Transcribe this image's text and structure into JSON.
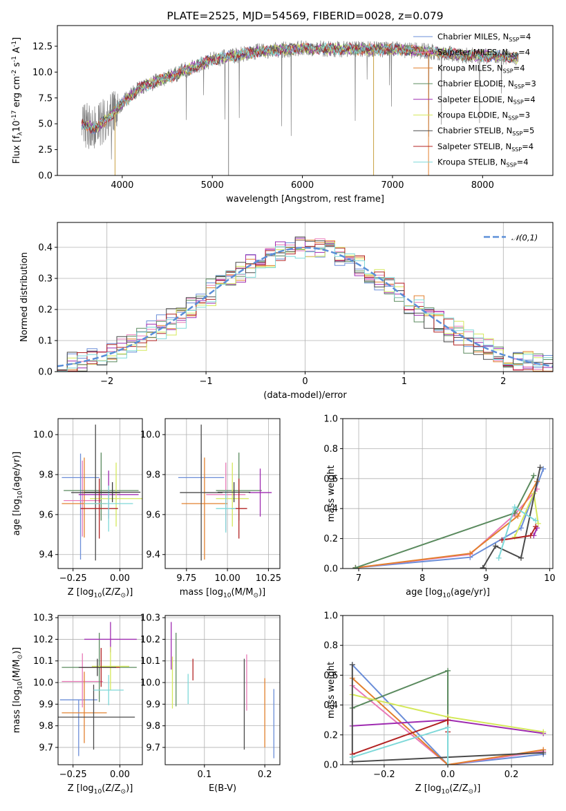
{
  "chart_data": [
    {
      "id": "spectrum",
      "type": "line",
      "title": "PLATE=2525, MJD=54569, FIBERID=0028, z=0.079",
      "xlabel": "wavelength [Angstrom, rest frame]",
      "ylabel": "Flux [f$_\\lambda$10$^{-17}$ erg cm$^{-2}$ s$^{-1}$ A$^{-1}$]",
      "xlim": [
        3280,
        8780
      ],
      "ylim": [
        0,
        14.5
      ],
      "xticks": [
        4000,
        5000,
        6000,
        7000,
        8000
      ],
      "yticks": [
        0.0,
        2.5,
        5.0,
        7.5,
        10.0,
        12.5
      ],
      "xtick_labels": [
        "4000",
        "5000",
        "6000",
        "7000",
        "8000"
      ],
      "ytick_labels": [
        "0.0",
        "2.5",
        "5.0",
        "7.5",
        "10.0",
        "12.5"
      ],
      "legend_position": "top-right",
      "data_range": [
        3550,
        8400
      ],
      "continuum": [
        [
          3550,
          5.0
        ],
        [
          3700,
          4.5
        ],
        [
          3900,
          6.0
        ],
        [
          4000,
          7.0
        ],
        [
          4200,
          8.5
        ],
        [
          4500,
          9.5
        ],
        [
          4800,
          10.5
        ],
        [
          5000,
          11.2
        ],
        [
          5500,
          12.0
        ],
        [
          6000,
          12.3
        ],
        [
          6500,
          12.2
        ],
        [
          7000,
          12.2
        ],
        [
          7400,
          12.0
        ],
        [
          7800,
          11.6
        ],
        [
          8000,
          11.6
        ],
        [
          8400,
          11.4
        ]
      ],
      "series": [
        {
          "name": "Chabrier MILES, N$_{SSP}$=4",
          "color": "#6a8dd8"
        },
        {
          "name": "Salpeter MILES, N$_{SSP}$=4",
          "color": "#e879b7"
        },
        {
          "name": "Kroupa MILES, N$_{SSP}$=4",
          "color": "#e2802e"
        },
        {
          "name": "Chabrier ELODIE, N$_{SSP}$=3",
          "color": "#5a8a5e"
        },
        {
          "name": "Salpeter ELODIE, N$_{SSP}$=4",
          "color": "#9e2ab0"
        },
        {
          "name": "Kroupa ELODIE, N$_{SSP}$=3",
          "color": "#d4e85a"
        },
        {
          "name": "Chabrier STELIB, N$_{SSP}$=5",
          "color": "#4a4a4a"
        },
        {
          "name": "Salpeter STELIB, N$_{SSP}$=4",
          "color": "#b22222"
        },
        {
          "name": "Kroupa STELIB, N$_{SSP}$=4",
          "color": "#7dd8d8"
        }
      ]
    },
    {
      "id": "residuals",
      "type": "histogram",
      "xlabel": "(data-model)/error",
      "ylabel": "Normed distribution",
      "xlim": [
        -2.5,
        2.5
      ],
      "ylim": [
        0,
        0.48
      ],
      "xticks": [
        -2,
        -1,
        0,
        1,
        2
      ],
      "yticks": [
        0.0,
        0.1,
        0.2,
        0.3,
        0.4
      ],
      "xtick_labels": [
        "−2",
        "−1",
        "0",
        "1",
        "2"
      ],
      "ytick_labels": [
        "0.0",
        "0.1",
        "0.2",
        "0.3",
        "0.4"
      ],
      "legend": "$\\mathcal{N}(0,1)$",
      "legend_position": "top-right",
      "bin_width": 0.1,
      "bin_start": -2.5,
      "gaussian_color": "#5a8ed8"
    },
    {
      "id": "age_vs_Z",
      "type": "errorbar",
      "xlabel": "Z [log$_{10}$(Z/Z$_\\odot$)]",
      "ylabel": "age  [log$_{10}$(age/yr)]",
      "xlim": [
        -0.33,
        0.12
      ],
      "ylim": [
        9.33,
        10.08
      ],
      "xticks": [
        -0.25,
        0.0
      ],
      "yticks": [
        9.4,
        9.6,
        9.8,
        10.0
      ],
      "xtick_labels": [
        "−0.25",
        "0.00"
      ],
      "ytick_labels": [
        "9.4",
        "9.6",
        "9.8",
        "10.0"
      ],
      "points": [
        {
          "x": -0.21,
          "xerr": 0.1,
          "y": 9.785,
          "yerr": [
            0.41,
            0.12
          ],
          "color": "#6a8dd8"
        },
        {
          "x": -0.2,
          "xerr": 0.1,
          "y": 9.67,
          "yerr": [
            0.18,
            0.2
          ],
          "color": "#e879b7"
        },
        {
          "x": -0.19,
          "xerr": 0.12,
          "y": 9.655,
          "yerr": [
            0.17,
            0.23
          ],
          "color": "#e2802e"
        },
        {
          "x": -0.1,
          "xerr": 0.2,
          "y": 9.72,
          "yerr": [
            0.15,
            0.19
          ],
          "color": "#5a8a5e"
        },
        {
          "x": -0.06,
          "xerr": 0.16,
          "y": 9.7,
          "yerr": [
            0.12,
            0.12
          ],
          "color": "#9e2ab0"
        },
        {
          "x": -0.02,
          "xerr": 0.14,
          "y": 9.68,
          "yerr": [
            0.14,
            0.18
          ],
          "color": "#d4e85a"
        },
        {
          "x": -0.13,
          "xerr": 0.13,
          "y": 9.71,
          "yerr": [
            0.34,
            0.34
          ],
          "color": "#4a4a4a"
        },
        {
          "x": -0.11,
          "xerr": 0.1,
          "y": 9.63,
          "yerr": [
            0.15,
            0.15
          ],
          "color": "#b22222"
        },
        {
          "x": -0.06,
          "xerr": 0.13,
          "y": 9.655,
          "yerr": [
            0.14,
            0.09
          ],
          "color": "#7dd8d8"
        },
        {
          "x": -0.04,
          "xerr": 0.15,
          "y": 9.712,
          "yerr": [
            0.05,
            0.05
          ],
          "color": "#3a3a3a"
        }
      ]
    },
    {
      "id": "age_vs_mass",
      "type": "errorbar",
      "xlabel": "mass [log$_{10}$(M/M$_\\odot$)]",
      "ylabel": "",
      "xlim": [
        9.62,
        10.32
      ],
      "ylim": [
        9.33,
        10.08
      ],
      "xticks": [
        9.75,
        10.0,
        10.25
      ],
      "yticks": [
        9.4,
        9.6,
        9.8,
        10.0
      ],
      "xtick_labels": [
        "9.75",
        "10.00",
        "10.25"
      ],
      "ytick_labels": [
        "9.4",
        "9.6",
        "9.8",
        "10.0"
      ],
      "points": [
        {
          "x": 9.84,
          "xerr": 0.14,
          "y": 9.785,
          "yerr": [
            0.12,
            0.12
          ],
          "color": "#6a8dd8"
        },
        {
          "x": 9.99,
          "xerr": 0.12,
          "y": 9.7,
          "yerr": [
            0.18,
            0.16
          ],
          "color": "#e879b7"
        },
        {
          "x": 9.86,
          "xerr": 0.14,
          "y": 9.655,
          "yerr": [
            0.28,
            0.23
          ],
          "color": "#e2802e"
        },
        {
          "x": 10.07,
          "xerr": 0.14,
          "y": 9.72,
          "yerr": [
            0.15,
            0.19
          ],
          "color": "#5a8a5e"
        },
        {
          "x": 10.2,
          "xerr": 0.07,
          "y": 9.71,
          "yerr": [
            0.12,
            0.12
          ],
          "color": "#9e2ab0"
        },
        {
          "x": 10.03,
          "xerr": 0.1,
          "y": 9.68,
          "yerr": [
            0.14,
            0.18
          ],
          "color": "#d4e85a"
        },
        {
          "x": 9.84,
          "xerr": 0.13,
          "y": 9.71,
          "yerr": [
            0.34,
            0.34
          ],
          "color": "#4a4a4a"
        },
        {
          "x": 10.07,
          "xerr": 0.05,
          "y": 9.63,
          "yerr": [
            0.15,
            0.15
          ],
          "color": "#b22222"
        },
        {
          "x": 9.99,
          "xerr": 0.06,
          "y": 9.63,
          "yerr": [
            0.12,
            0.09
          ],
          "color": "#7dd8d8"
        },
        {
          "x": 10.04,
          "xerr": 0.1,
          "y": 9.712,
          "yerr": [
            0.05,
            0.05
          ],
          "color": "#3a3a3a"
        }
      ]
    },
    {
      "id": "weight_vs_age",
      "type": "line",
      "xlabel": "age  [log$_{10}$(age/yr)]",
      "ylabel": "mass weight",
      "xlim": [
        6.75,
        10.05
      ],
      "ylim": [
        0.0,
        1.0
      ],
      "xticks": [
        7,
        8,
        9,
        10
      ],
      "yticks": [
        0.0,
        0.2,
        0.4,
        0.6,
        0.8,
        1.0
      ],
      "xtick_labels": [
        "7",
        "8",
        "9",
        "10"
      ],
      "ytick_labels": [
        "0.0",
        "0.2",
        "0.4",
        "0.6",
        "0.8",
        "1.0"
      ],
      "series": [
        {
          "color": "#6a8dd8",
          "x": [
            6.95,
            8.75,
            9.55,
            9.9
          ],
          "y": [
            0.005,
            0.075,
            0.27,
            0.665
          ]
        },
        {
          "color": "#e879b7",
          "x": [
            6.95,
            8.75,
            9.45,
            9.8
          ],
          "y": [
            0.005,
            0.095,
            0.36,
            0.53
          ]
        },
        {
          "color": "#e2802e",
          "x": [
            6.95,
            8.75,
            9.5,
            9.8
          ],
          "y": [
            0.005,
            0.1,
            0.35,
            0.58
          ]
        },
        {
          "color": "#5a8a5e",
          "x": [
            6.95,
            9.45,
            9.75
          ],
          "y": [
            0.005,
            0.37,
            0.62
          ]
        },
        {
          "color": "#9e2ab0",
          "x": [
            9.75,
            9.8
          ],
          "y": [
            0.22,
            0.27
          ]
        },
        {
          "color": "#d4e85a",
          "x": [
            9.45,
            9.75,
            9.82
          ],
          "y": [
            0.21,
            0.5,
            0.3
          ]
        },
        {
          "color": "#4a4a4a",
          "x": [
            8.95,
            9.15,
            9.55,
            9.85
          ],
          "y": [
            0.005,
            0.15,
            0.07,
            0.675
          ]
        },
        {
          "color": "#b22222",
          "x": [
            9.25,
            9.7,
            9.78
          ],
          "y": [
            0.19,
            0.22,
            0.28
          ]
        },
        {
          "color": "#7dd8d8",
          "x": [
            9.2,
            9.45,
            9.78
          ],
          "y": [
            0.07,
            0.41,
            0.32
          ]
        }
      ]
    },
    {
      "id": "mass_vs_Z",
      "type": "errorbar",
      "xlabel": "Z [log$_{10}$(Z/Z$_\\odot$)]",
      "ylabel": "mass [log$_{10}$(M/M$_\\odot$)]",
      "xlim": [
        -0.33,
        0.12
      ],
      "ylim": [
        9.62,
        10.31
      ],
      "xticks": [
        -0.25,
        0.0
      ],
      "yticks": [
        9.7,
        9.8,
        9.9,
        10.0,
        10.1,
        10.2,
        10.3
      ],
      "xtick_labels": [
        "−0.25",
        "0.00"
      ],
      "ytick_labels": [
        "9.7",
        "9.8",
        "9.9",
        "10.0",
        "10.1",
        "10.2",
        "10.3"
      ],
      "points": [
        {
          "x": -0.22,
          "xerr": 0.1,
          "y": 9.92,
          "yerr": [
            0.26,
            0.0
          ],
          "color": "#6a8dd8"
        },
        {
          "x": -0.2,
          "xerr": 0.11,
          "y": 10.005,
          "yerr": [
            0.12,
            0.13
          ],
          "color": "#e879b7"
        },
        {
          "x": -0.19,
          "xerr": 0.12,
          "y": 9.86,
          "yerr": [
            0.14,
            0.19
          ],
          "color": "#e2802e"
        },
        {
          "x": -0.11,
          "xerr": 0.2,
          "y": 10.07,
          "yerr": [
            0.16,
            0.16
          ],
          "color": "#5a8a5e"
        },
        {
          "x": -0.05,
          "xerr": 0.14,
          "y": 10.2,
          "yerr": [
            0.06,
            0.08
          ],
          "color": "#9e2ab0"
        },
        {
          "x": -0.05,
          "xerr": 0.1,
          "y": 10.075,
          "yerr": [
            0.11,
            0.09
          ],
          "color": "#d4e85a"
        },
        {
          "x": -0.14,
          "xerr": 0.22,
          "y": 9.84,
          "yerr": [
            0.15,
            0.15
          ],
          "color": "#4a4a4a"
        },
        {
          "x": -0.1,
          "xerr": 0.1,
          "y": 10.07,
          "yerr": [
            0.09,
            0.09
          ],
          "color": "#b22222"
        },
        {
          "x": -0.06,
          "xerr": 0.08,
          "y": 9.965,
          "yerr": [
            0.07,
            0.07
          ],
          "color": "#7dd8d8"
        },
        {
          "x": -0.12,
          "xerr": 0.1,
          "y": 10.07,
          "yerr": [
            0.04,
            0.04
          ],
          "color": "#3a3a3a"
        }
      ]
    },
    {
      "id": "mass_vs_ebv",
      "type": "errorbar",
      "xlabel": "E(B-V)",
      "ylabel": "",
      "xlim": [
        0.035,
        0.225
      ],
      "ylim": [
        9.62,
        10.31
      ],
      "xticks": [
        0.1,
        0.2
      ],
      "yticks": [
        9.7,
        9.8,
        9.9,
        10.0,
        10.1,
        10.2,
        10.3
      ],
      "xtick_labels": [
        "0.1",
        "0.2"
      ],
      "ytick_labels": [
        "9.7",
        "9.8",
        "9.9",
        "10.0",
        "10.1",
        "10.2",
        "10.3"
      ],
      "points": [
        {
          "x": 0.215,
          "y": 9.81,
          "yerr": [
            0.16,
            0.16
          ],
          "color": "#6a8dd8"
        },
        {
          "x": 0.17,
          "y": 10.0,
          "yerr": [
            0.13,
            0.13
          ],
          "color": "#e879b7"
        },
        {
          "x": 0.2,
          "y": 9.86,
          "yerr": [
            0.16,
            0.16
          ],
          "color": "#e2802e"
        },
        {
          "x": 0.053,
          "y": 10.06,
          "yerr": [
            0.17,
            0.17
          ],
          "color": "#5a8a5e"
        },
        {
          "x": 0.045,
          "y": 10.17,
          "yerr": [
            0.11,
            0.11
          ],
          "color": "#9e2ab0"
        },
        {
          "x": 0.047,
          "y": 10.0,
          "yerr": [
            0.12,
            0.12
          ],
          "color": "#d4e85a"
        },
        {
          "x": 0.166,
          "y": 9.9,
          "yerr": [
            0.21,
            0.21
          ],
          "color": "#4a4a4a"
        },
        {
          "x": 0.081,
          "y": 10.06,
          "yerr": [
            0.05,
            0.05
          ],
          "color": "#b22222"
        },
        {
          "x": 0.073,
          "y": 9.97,
          "yerr": [
            0.07,
            0.07
          ],
          "color": "#7dd8d8"
        }
      ]
    },
    {
      "id": "weight_vs_Z",
      "type": "line",
      "xlabel": "Z [log$_{10}$(Z/Z$_\\odot$)]",
      "ylabel": "mass weight",
      "xlim": [
        -0.33,
        0.33
      ],
      "ylim": [
        0.0,
        1.0
      ],
      "xticks": [
        -0.2,
        0.0,
        0.2
      ],
      "yticks": [
        0.0,
        0.2,
        0.4,
        0.6,
        0.8,
        1.0
      ],
      "xtick_labels": [
        "−0.2",
        "0.0",
        "0.2"
      ],
      "ytick_labels": [
        "0.0",
        "0.2",
        "0.4",
        "0.6",
        "0.8",
        "1.0"
      ],
      "series": [
        {
          "color": "#6a8dd8",
          "x": [
            -0.3,
            0.0,
            0.3
          ],
          "y": [
            0.67,
            0.0,
            0.07
          ]
        },
        {
          "color": "#e879b7",
          "x": [
            -0.3,
            0.0,
            0.3
          ],
          "y": [
            0.53,
            0.0,
            0.09
          ]
        },
        {
          "color": "#e2802e",
          "x": [
            -0.3,
            0.0,
            0.3
          ],
          "y": [
            0.58,
            0.0,
            0.1
          ]
        },
        {
          "color": "#5a8a5e",
          "x": [
            -0.3,
            0.0,
            0.0
          ],
          "y": [
            0.38,
            0.63,
            0.0
          ]
        },
        {
          "color": "#9e2ab0",
          "x": [
            -0.3,
            0.0,
            0.3
          ],
          "y": [
            0.26,
            0.3,
            0.21
          ]
        },
        {
          "color": "#d4e85a",
          "x": [
            -0.3,
            0.0,
            0.3
          ],
          "y": [
            0.47,
            0.32,
            0.22
          ]
        },
        {
          "color": "#4a4a4a",
          "x": [
            -0.3,
            -0.3,
            0.3
          ],
          "y": [
            0.67,
            0.02,
            0.08
          ]
        },
        {
          "color": "#b22222",
          "x": [
            -0.3,
            0.0,
            0.0
          ],
          "y": [
            0.07,
            0.3,
            0.22
          ]
        },
        {
          "color": "#7dd8d8",
          "x": [
            -0.3,
            0.0,
            0.0
          ],
          "y": [
            0.05,
            0.25,
            0.0
          ]
        }
      ]
    }
  ]
}
